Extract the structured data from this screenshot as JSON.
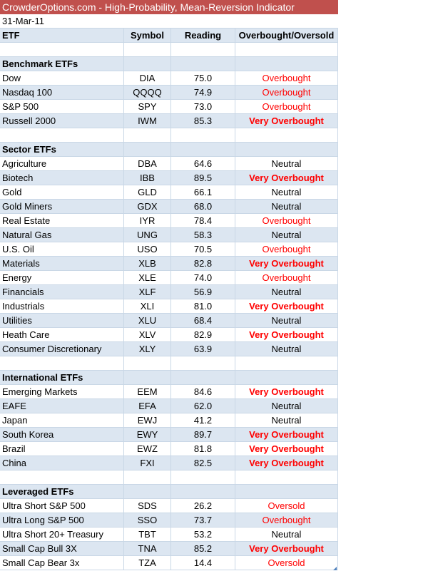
{
  "title": "CrowderOptions.com - High-Probability, Mean-Reversion Indicator",
  "date": "31-Mar-11",
  "headers": {
    "etf": "ETF",
    "symbol": "Symbol",
    "reading": "Reading",
    "status": "Overbought/Oversold"
  },
  "sections": [
    {
      "name": "Benchmark ETFs",
      "rows": [
        {
          "etf": "Dow",
          "symbol": "DIA",
          "reading": "75.0",
          "status": "Overbought"
        },
        {
          "etf": "Nasdaq 100",
          "symbol": "QQQQ",
          "reading": "74.9",
          "status": "Overbought"
        },
        {
          "etf": "S&P 500",
          "symbol": "SPY",
          "reading": "73.0",
          "status": "Overbought"
        },
        {
          "etf": "Russell 2000",
          "symbol": "IWM",
          "reading": "85.3",
          "status": "Very Overbought"
        }
      ]
    },
    {
      "name": "Sector ETFs",
      "rows": [
        {
          "etf": "Agriculture",
          "symbol": "DBA",
          "reading": "64.6",
          "status": "Neutral"
        },
        {
          "etf": "Biotech",
          "symbol": "IBB",
          "reading": "89.5",
          "status": "Very Overbought"
        },
        {
          "etf": "Gold",
          "symbol": "GLD",
          "reading": "66.1",
          "status": "Neutral"
        },
        {
          "etf": "Gold Miners",
          "symbol": "GDX",
          "reading": "68.0",
          "status": "Neutral"
        },
        {
          "etf": "Real Estate",
          "symbol": "IYR",
          "reading": "78.4",
          "status": "Overbought"
        },
        {
          "etf": "Natural Gas",
          "symbol": "UNG",
          "reading": "58.3",
          "status": "Neutral"
        },
        {
          "etf": "U.S. Oil",
          "symbol": "USO",
          "reading": "70.5",
          "status": "Overbought"
        },
        {
          "etf": "Materials",
          "symbol": "XLB",
          "reading": "82.8",
          "status": "Very Overbought"
        },
        {
          "etf": "Energy",
          "symbol": "XLE",
          "reading": "74.0",
          "status": "Overbought"
        },
        {
          "etf": "Financials",
          "symbol": "XLF",
          "reading": "56.9",
          "status": "Neutral"
        },
        {
          "etf": "Industrials",
          "symbol": "XLI",
          "reading": "81.0",
          "status": "Very Overbought"
        },
        {
          "etf": "Utilities",
          "symbol": "XLU",
          "reading": "68.4",
          "status": "Neutral"
        },
        {
          "etf": "Heath Care",
          "symbol": "XLV",
          "reading": "82.9",
          "status": "Very Overbought"
        },
        {
          "etf": "Consumer Discretionary",
          "symbol": "XLY",
          "reading": "63.9",
          "status": "Neutral"
        }
      ]
    },
    {
      "name": "International ETFs",
      "rows": [
        {
          "etf": "Emerging Markets",
          "symbol": "EEM",
          "reading": "84.6",
          "status": "Very Overbought"
        },
        {
          "etf": "EAFE",
          "symbol": "EFA",
          "reading": "62.0",
          "status": "Neutral"
        },
        {
          "etf": "Japan",
          "symbol": "EWJ",
          "reading": "41.2",
          "status": "Neutral"
        },
        {
          "etf": "South Korea",
          "symbol": "EWY",
          "reading": "89.7",
          "status": "Very Overbought"
        },
        {
          "etf": "Brazil",
          "symbol": "EWZ",
          "reading": "81.8",
          "status": "Very Overbought"
        },
        {
          "etf": "China",
          "symbol": "FXI",
          "reading": "82.5",
          "status": "Very Overbought"
        }
      ]
    },
    {
      "name": "Leveraged ETFs",
      "rows": [
        {
          "etf": "Ultra Short S&P 500",
          "symbol": "SDS",
          "reading": "26.2",
          "status": "Oversold"
        },
        {
          "etf": "Ultra Long S&P 500",
          "symbol": "SSO",
          "reading": "73.7",
          "status": "Overbought"
        },
        {
          "etf": "Ultra Short 20+ Treasury",
          "symbol": "TBT",
          "reading": "53.2",
          "status": "Neutral"
        },
        {
          "etf": "Small Cap Bull 3X",
          "symbol": "TNA",
          "reading": "85.2",
          "status": "Very Overbought"
        },
        {
          "etf": "Small Cap Bear 3x",
          "symbol": "TZA",
          "reading": "14.4",
          "status": "Oversold"
        }
      ]
    }
  ]
}
